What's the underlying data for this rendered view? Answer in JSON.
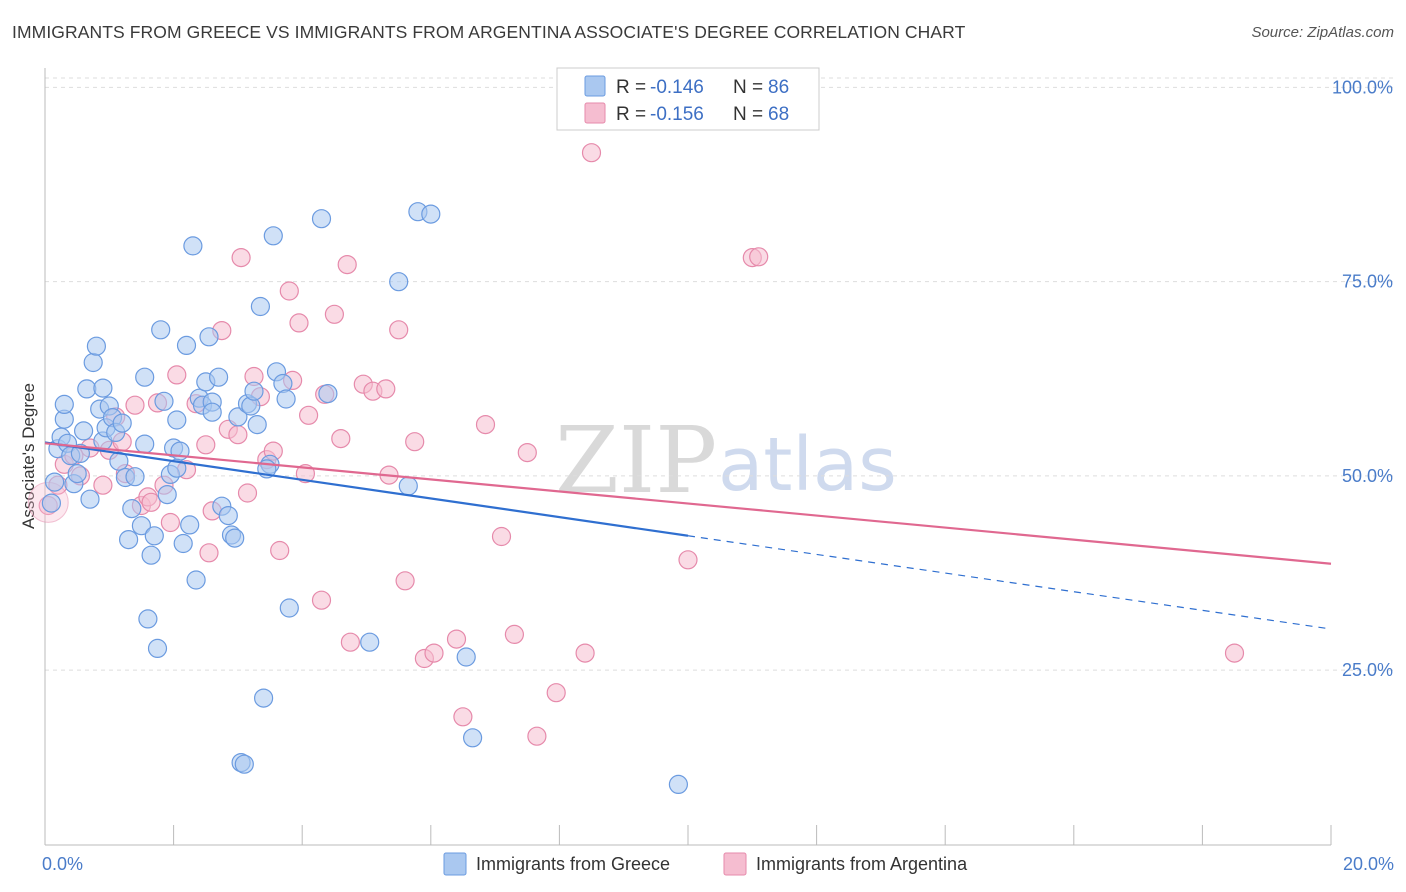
{
  "header": {
    "title": "IMMIGRANTS FROM GREECE VS IMMIGRANTS FROM ARGENTINA ASSOCIATE'S DEGREE CORRELATION CHART",
    "source": "Source: ZipAtlas.com"
  },
  "watermark": {
    "zip": "ZIP",
    "atlas": "atlas"
  },
  "legend": {
    "rows": [
      {
        "r_label": "R = ",
        "r_value": "-0.146",
        "n_label": "N = ",
        "n_value": "86"
      },
      {
        "r_label": "R = ",
        "r_value": "-0.156",
        "n_label": "N = ",
        "n_value": "68"
      }
    ]
  },
  "colors": {
    "greece_fill": "#aac8f0",
    "greece_stroke": "#6b9be0",
    "greece_line": "#2f6fd0",
    "argentina_fill": "#f5bdd0",
    "argentina_stroke": "#e68aab",
    "argentina_line": "#e06890",
    "grid": "#dddddd",
    "axis": "#bbbbbb"
  },
  "chart_data": {
    "type": "scatter",
    "title": "IMMIGRANTS FROM GREECE VS IMMIGRANTS FROM ARGENTINA ASSOCIATE'S DEGREE CORRELATION CHART",
    "xlabel": "",
    "ylabel": "Associate's Degree",
    "xlim": [
      0,
      20
    ],
    "ylim": [
      2.5,
      102.5
    ],
    "x_tick_labels": [
      "0.0%",
      "20.0%"
    ],
    "y_ticks": [
      25,
      50,
      75,
      100
    ],
    "y_tick_labels": [
      "25.0%",
      "50.0%",
      "75.0%",
      "100.0%"
    ],
    "grid": true,
    "series": [
      {
        "name": "Immigrants from Greece",
        "R": -0.146,
        "N": 86,
        "trend": {
          "x0": 0,
          "y0": 54.3,
          "x1": 10.0,
          "y1": 42.3,
          "dash_to_x": 20,
          "dash_to_y": 30.3
        },
        "points": [
          [
            0.1,
            46.5
          ],
          [
            0.15,
            49.2
          ],
          [
            0.2,
            53.5
          ],
          [
            0.25,
            55
          ],
          [
            0.3,
            57.3
          ],
          [
            0.35,
            54.2
          ],
          [
            0.4,
            52.6
          ],
          [
            0.45,
            49
          ],
          [
            0.5,
            50.3
          ],
          [
            0.55,
            52.9
          ],
          [
            0.6,
            55.8
          ],
          [
            0.65,
            61.2
          ],
          [
            0.7,
            47
          ],
          [
            0.75,
            64.6
          ],
          [
            0.8,
            66.7
          ],
          [
            0.85,
            58.6
          ],
          [
            0.9,
            54.5
          ],
          [
            0.95,
            56.2
          ],
          [
            1.0,
            59
          ],
          [
            1.05,
            57.5
          ],
          [
            1.1,
            55.6
          ],
          [
            1.15,
            51.9
          ],
          [
            1.2,
            56.8
          ],
          [
            1.25,
            49.8
          ],
          [
            1.3,
            41.8
          ],
          [
            1.35,
            45.8
          ],
          [
            1.4,
            49.9
          ],
          [
            1.5,
            43.6
          ],
          [
            1.55,
            62.7
          ],
          [
            1.6,
            31.6
          ],
          [
            1.65,
            39.8
          ],
          [
            1.7,
            42.3
          ],
          [
            1.75,
            27.8
          ],
          [
            1.8,
            68.8
          ],
          [
            1.85,
            59.6
          ],
          [
            1.9,
            47.6
          ],
          [
            1.95,
            50.2
          ],
          [
            2.0,
            53.6
          ],
          [
            2.05,
            57.2
          ],
          [
            2.1,
            53.2
          ],
          [
            2.15,
            41.3
          ],
          [
            2.2,
            66.8
          ],
          [
            2.25,
            43.7
          ],
          [
            2.3,
            79.6
          ],
          [
            2.35,
            36.6
          ],
          [
            2.4,
            60
          ],
          [
            2.45,
            59.1
          ],
          [
            2.5,
            62.1
          ],
          [
            2.55,
            67.9
          ],
          [
            2.6,
            59.5
          ],
          [
            2.7,
            62.7
          ],
          [
            2.75,
            46.1
          ],
          [
            2.85,
            44.9
          ],
          [
            2.9,
            42.4
          ],
          [
            2.95,
            42
          ],
          [
            3.0,
            57.6
          ],
          [
            3.05,
            13.1
          ],
          [
            3.1,
            12.9
          ],
          [
            3.15,
            59.3
          ],
          [
            3.2,
            59
          ],
          [
            3.25,
            60.9
          ],
          [
            3.3,
            56.6
          ],
          [
            3.35,
            71.8
          ],
          [
            3.4,
            21.4
          ],
          [
            3.5,
            51.5
          ],
          [
            3.55,
            80.9
          ],
          [
            3.6,
            63.4
          ],
          [
            3.7,
            61.9
          ],
          [
            3.75,
            59.9
          ],
          [
            3.8,
            33
          ],
          [
            4.3,
            83.1
          ],
          [
            4.4,
            60.6
          ],
          [
            5.05,
            28.6
          ],
          [
            5.5,
            75
          ],
          [
            5.65,
            48.7
          ],
          [
            5.8,
            84
          ],
          [
            6.0,
            83.7
          ],
          [
            6.55,
            26.7
          ],
          [
            6.65,
            16.3
          ],
          [
            9.85,
            10.3
          ],
          [
            0.3,
            59.2
          ],
          [
            1.55,
            54.1
          ],
          [
            2.6,
            58.2
          ],
          [
            3.45,
            50.9
          ],
          [
            0.9,
            61.3
          ],
          [
            2.05,
            51
          ]
        ]
      },
      {
        "name": "Immigrants from Argentina",
        "R": -0.156,
        "N": 68,
        "trend": {
          "x0": 0,
          "y0": 54.2,
          "x1": 20,
          "y1": 38.7
        },
        "points": [
          [
            0.05,
            46.2
          ],
          [
            0.2,
            48.8
          ],
          [
            0.3,
            51.5
          ],
          [
            0.45,
            52.6
          ],
          [
            0.55,
            50
          ],
          [
            0.7,
            53.6
          ],
          [
            0.9,
            48.8
          ],
          [
            1.0,
            53.3
          ],
          [
            1.1,
            57.6
          ],
          [
            1.2,
            54.4
          ],
          [
            1.25,
            50.3
          ],
          [
            1.4,
            59.1
          ],
          [
            1.5,
            46.2
          ],
          [
            1.6,
            47.3
          ],
          [
            1.65,
            46.6
          ],
          [
            1.75,
            59.4
          ],
          [
            1.85,
            48.8
          ],
          [
            1.95,
            44
          ],
          [
            2.05,
            63
          ],
          [
            2.2,
            50.8
          ],
          [
            2.35,
            59.3
          ],
          [
            2.5,
            54
          ],
          [
            2.55,
            40.1
          ],
          [
            2.6,
            45.5
          ],
          [
            2.75,
            68.7
          ],
          [
            2.85,
            56
          ],
          [
            3.0,
            55.3
          ],
          [
            3.05,
            78.1
          ],
          [
            3.15,
            47.8
          ],
          [
            3.25,
            62.8
          ],
          [
            3.35,
            60.2
          ],
          [
            3.45,
            52.1
          ],
          [
            3.55,
            53.2
          ],
          [
            3.65,
            40.4
          ],
          [
            3.8,
            73.8
          ],
          [
            3.85,
            62.3
          ],
          [
            3.95,
            69.7
          ],
          [
            4.05,
            50.3
          ],
          [
            4.1,
            57.8
          ],
          [
            4.3,
            34
          ],
          [
            4.35,
            60.5
          ],
          [
            4.5,
            70.8
          ],
          [
            4.6,
            54.8
          ],
          [
            4.7,
            77.2
          ],
          [
            4.75,
            28.6
          ],
          [
            4.95,
            61.8
          ],
          [
            5.1,
            60.9
          ],
          [
            5.3,
            61.2
          ],
          [
            5.35,
            50.1
          ],
          [
            5.5,
            68.8
          ],
          [
            5.6,
            36.5
          ],
          [
            5.75,
            54.4
          ],
          [
            5.9,
            26.5
          ],
          [
            6.05,
            27.2
          ],
          [
            6.4,
            29
          ],
          [
            6.5,
            19
          ],
          [
            6.85,
            56.6
          ],
          [
            7.1,
            42.2
          ],
          [
            7.3,
            29.6
          ],
          [
            7.5,
            53
          ],
          [
            7.65,
            16.5
          ],
          [
            7.95,
            22.1
          ],
          [
            8.4,
            27.2
          ],
          [
            8.5,
            91.6
          ],
          [
            10.0,
            39.2
          ],
          [
            11.0,
            78.1
          ],
          [
            11.1,
            78.2
          ],
          [
            18.5,
            27.2
          ]
        ]
      }
    ]
  },
  "bottom_legend": {
    "items": [
      "Immigrants from Greece",
      "Immigrants from Argentina"
    ]
  }
}
